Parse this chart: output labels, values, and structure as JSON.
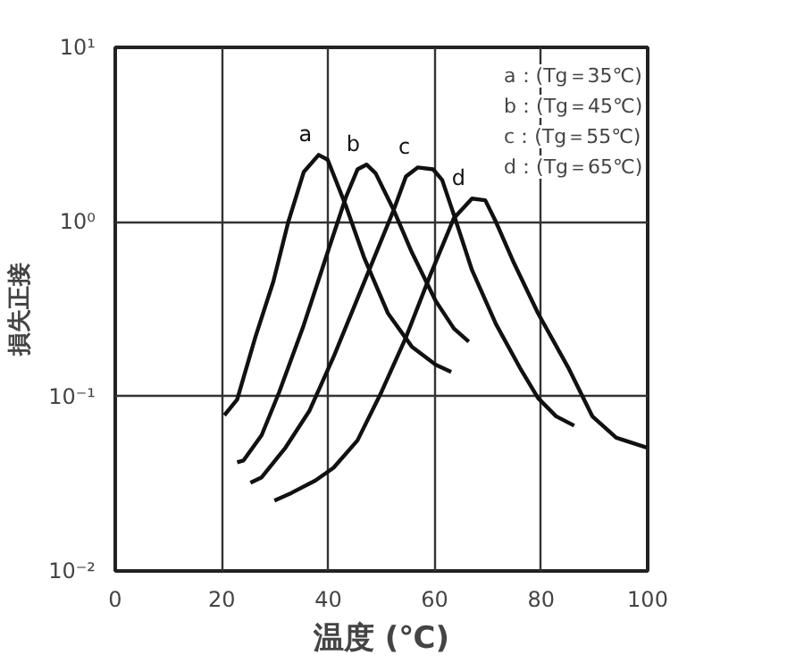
{
  "chart_data": {
    "type": "line",
    "xlabel": "温度 (℃)",
    "ylabel": "損失正接",
    "log": "y",
    "xlim": [
      0,
      100
    ],
    "xticks": [
      0,
      20,
      40,
      60,
      80,
      100
    ],
    "ylim": [
      0.01,
      10
    ],
    "yticks": [
      {
        "value": 0.01,
        "label": "10⁻²"
      },
      {
        "value": 0.1,
        "label": "10⁻¹"
      },
      {
        "value": 1,
        "label": "10⁰"
      },
      {
        "value": 10,
        "label": "10¹"
      }
    ],
    "grid": true,
    "line_style": "solid",
    "series": [
      {
        "name": "a",
        "color": "#111111",
        "x": [
          20.5,
          22.9,
          26.3,
          29.7,
          32.5,
          35.4,
          38.2,
          39.9,
          43.3,
          46.7,
          51.2,
          55.7,
          60.2,
          63.1
        ],
        "values": [
          0.078,
          0.096,
          0.218,
          0.456,
          1.0,
          1.93,
          2.42,
          2.27,
          1.24,
          0.63,
          0.3,
          0.193,
          0.152,
          0.138
        ]
      },
      {
        "name": "b",
        "color": "#111111",
        "x": [
          22.9,
          24.1,
          27.5,
          30.8,
          35.4,
          39.9,
          43.3,
          45.5,
          47.2,
          48.9,
          52.3,
          55.7,
          60.2,
          63.6,
          66.4
        ],
        "values": [
          0.042,
          0.043,
          0.06,
          0.106,
          0.256,
          0.67,
          1.38,
          2.0,
          2.13,
          1.9,
          1.17,
          0.67,
          0.352,
          0.245,
          0.206
        ]
      },
      {
        "name": "c",
        "color": "#111111",
        "x": [
          25.4,
          27.5,
          32.0,
          36.5,
          41.1,
          46.7,
          52.3,
          54.6,
          56.8,
          59.7,
          61.4,
          63.6,
          67.0,
          71.5,
          76.0,
          79.4,
          82.8,
          86.2
        ],
        "values": [
          0.032,
          0.0344,
          0.051,
          0.083,
          0.171,
          0.447,
          1.17,
          1.82,
          2.05,
          2.0,
          1.74,
          1.1,
          0.53,
          0.26,
          0.146,
          0.098,
          0.077,
          0.068
        ]
      },
      {
        "name": "d",
        "color": "#111111",
        "x": [
          29.9,
          33.1,
          37.6,
          41.0,
          45.5,
          50.0,
          54.6,
          59.1,
          63.6,
          67.0,
          69.5,
          71.5,
          74.9,
          79.4,
          85.1,
          89.6,
          94.1,
          99.8
        ],
        "values": [
          0.0253,
          0.028,
          0.033,
          0.039,
          0.056,
          0.106,
          0.218,
          0.49,
          1.05,
          1.36,
          1.33,
          1.0,
          0.58,
          0.3,
          0.146,
          0.077,
          0.058,
          0.051
        ]
      }
    ],
    "annotations": [
      "a：(Tg＝35℃)",
      "b：(Tg＝45℃)",
      "c：(Tg＝55℃)",
      "d：(Tg＝65℃)"
    ]
  }
}
